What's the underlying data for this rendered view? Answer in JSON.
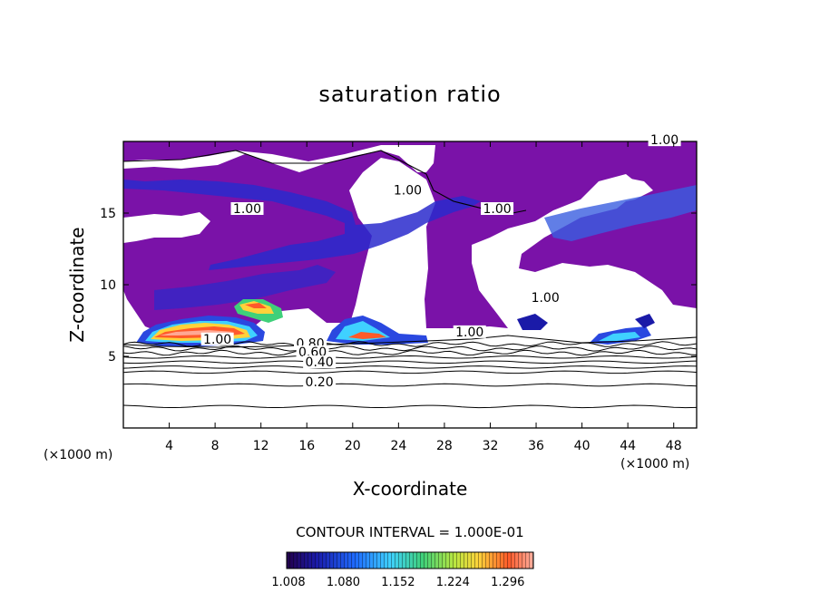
{
  "chart_data": {
    "type": "heatmap",
    "title": "saturation ratio",
    "xlabel": "X-coordinate",
    "ylabel": "Z-coordinate",
    "x_unit": "(×1000 m)",
    "y_unit": "(×1000 m)",
    "xlim": [
      0,
      50
    ],
    "ylim": [
      0,
      20
    ],
    "x_ticks": [
      4,
      8,
      12,
      16,
      20,
      24,
      28,
      32,
      36,
      40,
      44,
      48
    ],
    "y_ticks": [
      5,
      10,
      15
    ],
    "contour_interval_text": "CONTOUR INTERVAL = 1.000E-01",
    "colorbar": {
      "min": 1.008,
      "max": 1.332,
      "tick_values": [
        1.008,
        1.08,
        1.152,
        1.224,
        1.296
      ],
      "tick_labels": [
        "1.008",
        "1.080",
        "1.152",
        "1.224",
        "1.296"
      ]
    },
    "contour_labels": [
      {
        "text": "1.00",
        "x": 8.2,
        "y": 5.9
      },
      {
        "text": "1.00",
        "x": 10.8,
        "y": 15.0
      },
      {
        "text": "1.00",
        "x": 24.8,
        "y": 16.3
      },
      {
        "text": "1.00",
        "x": 32.6,
        "y": 15.0
      },
      {
        "text": "1.00",
        "x": 36.8,
        "y": 8.8
      },
      {
        "text": "1.00",
        "x": 30.2,
        "y": 6.4
      },
      {
        "text": "1.00",
        "x": 47.2,
        "y": 19.8
      },
      {
        "text": "0.80",
        "x": 16.3,
        "y": 5.6
      },
      {
        "text": "0.60",
        "x": 16.5,
        "y": 5.0
      },
      {
        "text": "0.40",
        "x": 17.1,
        "y": 4.3
      },
      {
        "text": "0.20",
        "x": 17.1,
        "y": 2.9
      }
    ],
    "subsaturated_contours": [
      0.9,
      0.8,
      0.7,
      0.6,
      0.5,
      0.4,
      0.3,
      0.2,
      0.1
    ],
    "contour_heights": [
      5.85,
      5.55,
      5.25,
      4.95,
      4.6,
      4.25,
      3.9,
      3.0,
      1.5
    ]
  }
}
